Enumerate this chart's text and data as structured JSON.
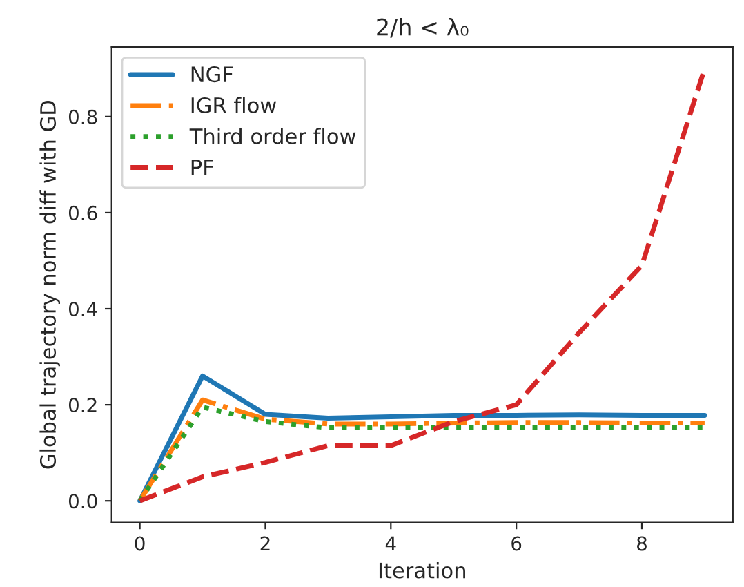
{
  "chart_data": {
    "type": "line",
    "title": "2/h < λ₀",
    "xlabel": "Iteration",
    "ylabel": "Global trajectory norm diff with GD",
    "x": [
      0,
      1,
      2,
      3,
      4,
      5,
      6,
      7,
      8,
      9
    ],
    "series": [
      {
        "name": "NGF",
        "color": "#1f77b4",
        "line_style": "solid",
        "values": [
          0,
          0.26,
          0.18,
          0.172,
          0.175,
          0.178,
          0.178,
          0.179,
          0.178,
          0.178
        ]
      },
      {
        "name": "IGR flow",
        "color": "#ff7f0e",
        "line_style": "dashdot",
        "values": [
          0,
          0.21,
          0.17,
          0.16,
          0.16,
          0.162,
          0.163,
          0.163,
          0.162,
          0.162
        ]
      },
      {
        "name": "Third order flow",
        "color": "#2ca02c",
        "line_style": "dotted",
        "values": [
          0,
          0.195,
          0.165,
          0.152,
          0.152,
          0.153,
          0.153,
          0.153,
          0.152,
          0.152
        ]
      },
      {
        "name": "PF",
        "color": "#d62728",
        "line_style": "dashed",
        "values": [
          0,
          0.05,
          0.08,
          0.115,
          0.115,
          0.165,
          0.2,
          0.35,
          0.49,
          0.9
        ]
      }
    ],
    "xlim": [
      -0.45,
      9.45
    ],
    "ylim": [
      -0.045,
      0.945
    ],
    "xticks": [
      0,
      2,
      4,
      6,
      8
    ],
    "yticks": [
      {
        "value": 0,
        "label": "0.0"
      },
      0.2,
      0.4,
      0.6,
      0.8
    ],
    "legend": "top left",
    "grid": false
  }
}
